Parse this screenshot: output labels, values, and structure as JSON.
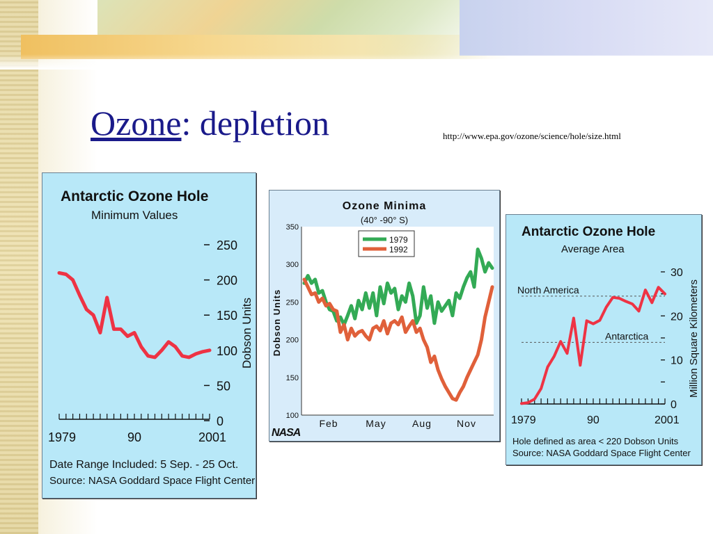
{
  "slide": {
    "title_word": "Ozone",
    "title_rest": ": depletion",
    "url": "http://www.epa.gov/ozone/science/hole/size.html"
  },
  "chart_data": [
    {
      "type": "line",
      "title": "Antarctic Ozone Hole",
      "subtitle": "Minimum Values",
      "ylabel": "Dobson Units",
      "ylim": [
        0,
        250
      ],
      "yticks": [
        "250",
        "200",
        "150",
        "100",
        "50",
        "0"
      ],
      "xticks": [
        "1979",
        "90",
        "2001"
      ],
      "x": [
        1979,
        1980,
        1981,
        1982,
        1983,
        1984,
        1985,
        1986,
        1987,
        1988,
        1989,
        1990,
        1991,
        1992,
        1993,
        1994,
        1995,
        1996,
        1997,
        1998,
        1999,
        2000,
        2001
      ],
      "values": [
        210,
        208,
        200,
        178,
        158,
        150,
        125,
        175,
        130,
        130,
        120,
        125,
        105,
        92,
        90,
        100,
        112,
        105,
        92,
        90,
        95,
        98,
        100
      ],
      "color": "#ee3344",
      "note1": "Date Range Included: 5 Sep. - 25 Oct.",
      "note2": "Source:  NASA Goddard Space Flight Center"
    },
    {
      "type": "line",
      "title": "Ozone Minima",
      "subtitle": "(40° -90° S)",
      "ylabel": "Dobson Units",
      "ylim": [
        100,
        350
      ],
      "yticks": [
        "350",
        "300",
        "250",
        "200",
        "150",
        "100"
      ],
      "xticks": [
        "Feb",
        "May",
        "Aug",
        "Nov"
      ],
      "logo": "NASA",
      "series": [
        {
          "name": "1979",
          "color": "#33aa55",
          "values": [
            275,
            285,
            275,
            280,
            262,
            265,
            250,
            240,
            238,
            225,
            230,
            220,
            232,
            245,
            228,
            252,
            240,
            262,
            242,
            262,
            232,
            270,
            248,
            275,
            262,
            268,
            240,
            258,
            250,
            275,
            258,
            222,
            232,
            270,
            242,
            258,
            222,
            250,
            238,
            245,
            252,
            232,
            262,
            255,
            270,
            282,
            290,
            270,
            320,
            308,
            290,
            302,
            295
          ]
        },
        {
          "name": "1992",
          "color": "#e0603a",
          "values": [
            280,
            270,
            260,
            262,
            250,
            255,
            245,
            248,
            240,
            238,
            210,
            220,
            200,
            215,
            205,
            210,
            212,
            205,
            200,
            215,
            218,
            212,
            225,
            208,
            222,
            225,
            220,
            230,
            210,
            218,
            225,
            210,
            215,
            200,
            190,
            170,
            178,
            160,
            148,
            138,
            130,
            122,
            120,
            130,
            138,
            150,
            160,
            170,
            180,
            200,
            230,
            250,
            270
          ]
        }
      ]
    },
    {
      "type": "line",
      "title": "Antarctic Ozone Hole",
      "subtitle": "Average Area",
      "ylabel": "Million Square Kilometers",
      "ylim": [
        0,
        30
      ],
      "yticks": [
        "30",
        "20",
        "10",
        "0"
      ],
      "xticks": [
        "1979",
        "90",
        "2001"
      ],
      "x": [
        1979,
        1980,
        1981,
        1982,
        1983,
        1984,
        1985,
        1986,
        1987,
        1988,
        1989,
        1990,
        1991,
        1992,
        1993,
        1994,
        1995,
        1996,
        1997,
        1998,
        1999,
        2000,
        2001
      ],
      "values": [
        0.1,
        0.3,
        1.1,
        3.5,
        8.4,
        10.8,
        14.2,
        11.5,
        19.5,
        8.8,
        18.9,
        18.2,
        19.0,
        22.0,
        24.2,
        24.0,
        23.3,
        22.7,
        21.1,
        25.9,
        23.0,
        26.5,
        25.0
      ],
      "reference_lines": [
        {
          "label": "North America",
          "value": 24.5
        },
        {
          "label": "Antarctica",
          "value": 14.0
        }
      ],
      "color": "#ee3344",
      "note1": "Hole defined as area < 220 Dobson Units",
      "note2": "Source:  NASA Goddard Space Flight Center"
    }
  ]
}
